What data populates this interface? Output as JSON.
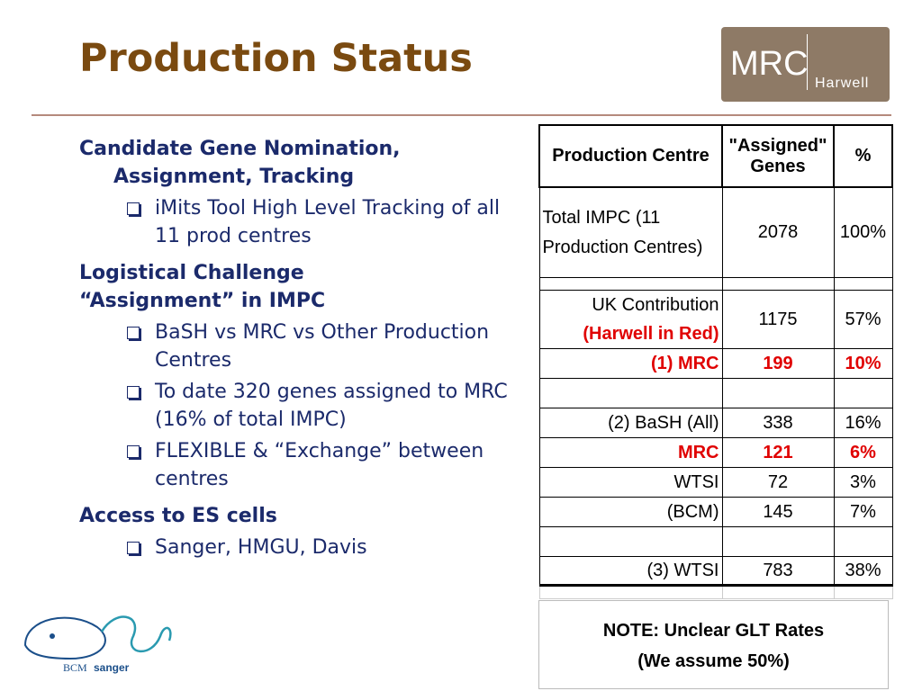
{
  "header": {
    "title": "Production Status",
    "logo": {
      "mark": "MRC",
      "site": "Harwell"
    }
  },
  "sections": [
    {
      "heading": "Candidate Gene Nomination, Assignment, Tracking",
      "bullets": [
        "iMits Tool High Level Tracking of all 11 prod centres"
      ]
    },
    {
      "heading": "Logistical Challenge",
      "bullets": []
    },
    {
      "heading": "“Assignment” in IMPC",
      "bullets": [
        "BaSH vs MRC vs Other Production Centres",
        "To date 320 genes assigned to MRC (16% of total IMPC)",
        "FLEXIBLE & “Exchange” between centres"
      ]
    },
    {
      "heading": "Access to ES cells",
      "bullets": [
        "Sanger, HMGU, Davis"
      ]
    }
  ],
  "table": {
    "header": [
      "Production Centre",
      "\"Assigned\" Genes",
      "%"
    ],
    "rows": [
      [
        "Total IMPC (11 Production Centres)",
        "2078",
        "100%"
      ],
      [
        "UK Contribution",
        "1175",
        "57%"
      ],
      [
        "(1)  MRC",
        "199",
        "10%"
      ],
      [
        "(2) BaSH (All)",
        "338",
        "16%"
      ],
      [
        "MRC",
        "121",
        "6%"
      ],
      [
        "WTSI",
        "72",
        "3%"
      ],
      [
        "(BCM)",
        "145",
        "7%"
      ],
      [
        "(3) WTSI",
        "783",
        "38%"
      ]
    ],
    "uk_note": "(Harwell in Red)",
    "note": [
      "NOTE:  Unclear GLT Rates",
      "(We assume 50%)"
    ]
  },
  "footer_logo": {
    "partners": [
      "BCM",
      "sanger"
    ]
  }
}
